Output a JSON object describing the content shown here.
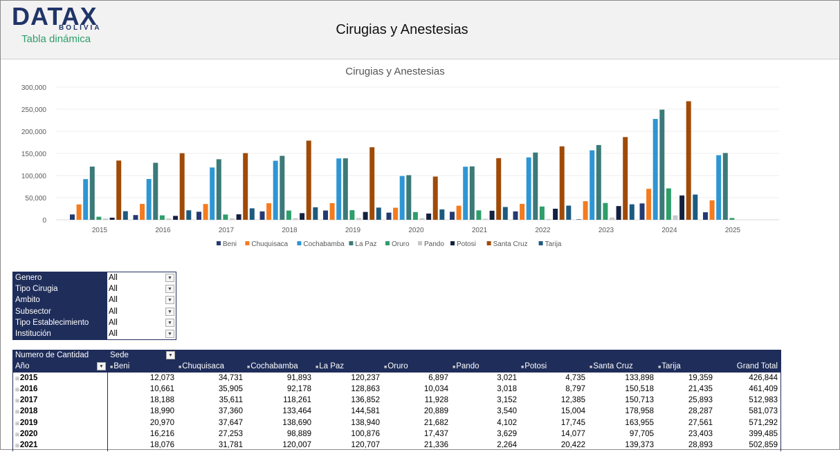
{
  "header": {
    "logo": "DATAX",
    "logo_sub": "BOLIVIA",
    "subtitle": "Tabla dinámica",
    "title": "Cirugias y Anestesias"
  },
  "chart_data": {
    "type": "bar",
    "title": "Cirugias y Anestesias",
    "ylim": [
      0,
      300000
    ],
    "yticks": [
      "0",
      "50,000",
      "100,000",
      "150,000",
      "200,000",
      "250,000",
      "300,000"
    ],
    "categories": [
      "2015",
      "2016",
      "2017",
      "2018",
      "2019",
      "2020",
      "2021",
      "2022",
      "2023",
      "2024",
      "2025"
    ],
    "legend_position": "bottom",
    "grid": true,
    "series": [
      {
        "name": "Beni",
        "color": "#243a73",
        "values": [
          12073,
          10661,
          18188,
          18990,
          20970,
          16216,
          18076,
          19000,
          1000,
          37000,
          17000
        ]
      },
      {
        "name": "Chuquisaca",
        "color": "#f47b20",
        "values": [
          34731,
          35905,
          35611,
          37360,
          37647,
          27253,
          31781,
          36000,
          42000,
          70000,
          44000
        ]
      },
      {
        "name": "Cochabamba",
        "color": "#2e96d4",
        "values": [
          91893,
          92178,
          118261,
          133464,
          138690,
          98889,
          120007,
          141000,
          157000,
          228000,
          146000
        ]
      },
      {
        "name": "La Paz",
        "color": "#3b7a78",
        "values": [
          120237,
          128863,
          136852,
          144581,
          138940,
          100876,
          120707,
          152000,
          169000,
          249000,
          151000
        ]
      },
      {
        "name": "Oruro",
        "color": "#2e9e6a",
        "values": [
          6897,
          10034,
          11928,
          20889,
          21682,
          17437,
          21336,
          30000,
          38000,
          71000,
          4000
        ]
      },
      {
        "name": "Pando",
        "color": "#c8c8c8",
        "values": [
          3021,
          3018,
          3152,
          3540,
          4102,
          3629,
          2264,
          2000,
          5000,
          10000,
          0
        ]
      },
      {
        "name": "Potosi",
        "color": "#142040",
        "values": [
          4735,
          8797,
          12385,
          15004,
          17745,
          14077,
          20422,
          25000,
          31000,
          55000,
          0
        ]
      },
      {
        "name": "Santa Cruz",
        "color": "#a04a08",
        "values": [
          133898,
          150518,
          150713,
          178958,
          163955,
          97705,
          139373,
          166000,
          187000,
          268000,
          0
        ]
      },
      {
        "name": "Tarija",
        "color": "#1d5a80",
        "values": [
          19359,
          21435,
          25893,
          28287,
          27561,
          23403,
          28893,
          32000,
          35000,
          57000,
          0
        ]
      }
    ]
  },
  "filters": [
    {
      "label": "Genero",
      "value": "All"
    },
    {
      "label": "Tipo Cirugia",
      "value": "All"
    },
    {
      "label": "Ambito",
      "value": "All"
    },
    {
      "label": "Subsector",
      "value": "All"
    },
    {
      "label": "Tipo Establecimiento",
      "value": "All"
    },
    {
      "label": "Institución",
      "value": "All"
    }
  ],
  "pivot": {
    "value_field": "Numero de Cantidad",
    "column_field": "Sede",
    "row_field": "Año",
    "columns": [
      "Beni",
      "Chuquisaca",
      "Cochabamba",
      "La Paz",
      "Oruro",
      "Pando",
      "Potosi",
      "Santa Cruz",
      "Tarija",
      "Grand Total"
    ],
    "rows": [
      {
        "year": "2015",
        "values": [
          "12,073",
          "34,731",
          "91,893",
          "120,237",
          "6,897",
          "3,021",
          "4,735",
          "133,898",
          "19,359",
          "426,844"
        ]
      },
      {
        "year": "2016",
        "values": [
          "10,661",
          "35,905",
          "92,178",
          "128,863",
          "10,034",
          "3,018",
          "8,797",
          "150,518",
          "21,435",
          "461,409"
        ]
      },
      {
        "year": "2017",
        "values": [
          "18,188",
          "35,611",
          "118,261",
          "136,852",
          "11,928",
          "3,152",
          "12,385",
          "150,713",
          "25,893",
          "512,983"
        ]
      },
      {
        "year": "2018",
        "values": [
          "18,990",
          "37,360",
          "133,464",
          "144,581",
          "20,889",
          "3,540",
          "15,004",
          "178,958",
          "28,287",
          "581,073"
        ]
      },
      {
        "year": "2019",
        "values": [
          "20,970",
          "37,647",
          "138,690",
          "138,940",
          "21,682",
          "4,102",
          "17,745",
          "163,955",
          "27,561",
          "571,292"
        ]
      },
      {
        "year": "2020",
        "values": [
          "16,216",
          "27,253",
          "98,889",
          "100,876",
          "17,437",
          "3,629",
          "14,077",
          "97,705",
          "23,403",
          "399,485"
        ]
      },
      {
        "year": "2021",
        "values": [
          "18,076",
          "31,781",
          "120,007",
          "120,707",
          "21,336",
          "2,264",
          "20,422",
          "139,373",
          "28,893",
          "502,859"
        ]
      }
    ]
  }
}
